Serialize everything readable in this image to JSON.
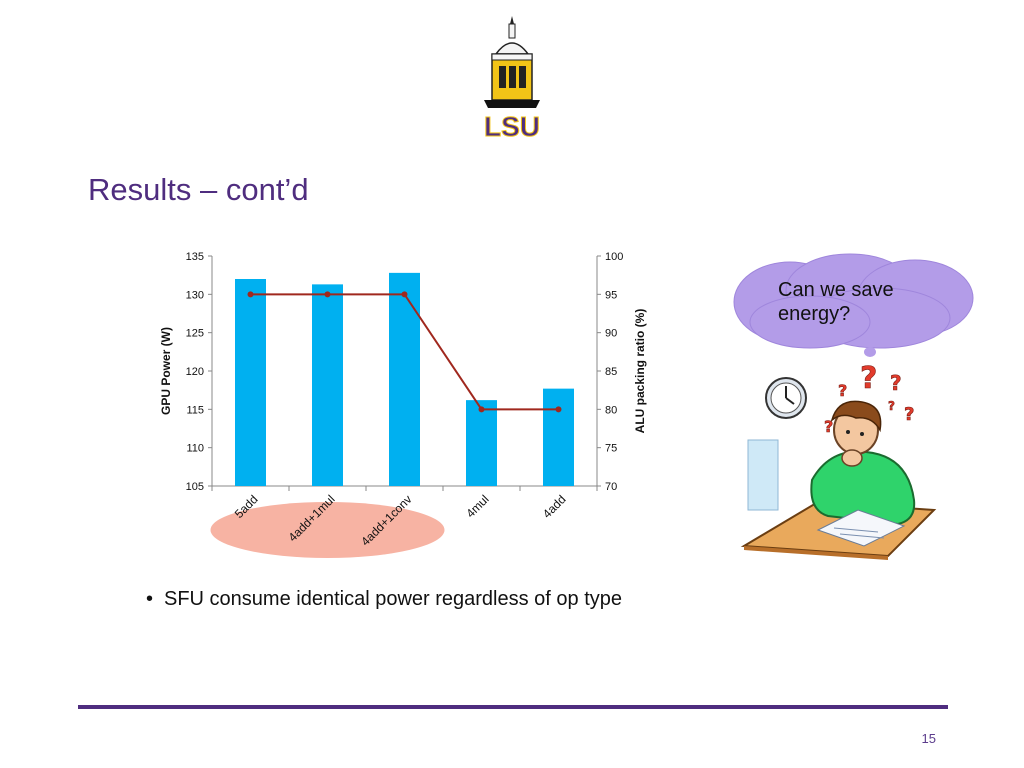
{
  "slide": {
    "title": "Results – cont’d",
    "logo_text": "LSU",
    "bubble_text": "Can we save energy?",
    "bullet": "SFU consume identical power regardless of op type",
    "page_number": "15"
  },
  "colors": {
    "title": "#4f2d7f",
    "bar": "#00b0f0",
    "line": "#a0281e",
    "highlight_ellipse": "#f7b3a3",
    "bubble": "#b39ce8",
    "rule": "#4f2d7f"
  },
  "chart_data": {
    "type": "bar",
    "categories": [
      "5add",
      "4add+1mul",
      "4add+1conv",
      "4mul",
      "4add"
    ],
    "series": [
      {
        "type": "bar",
        "axis": "left",
        "values": [
          132,
          131.3,
          132.8,
          116.2,
          117.7
        ]
      },
      {
        "type": "line",
        "axis": "right",
        "values": [
          95,
          95,
          95,
          80,
          80
        ]
      }
    ],
    "ylabel": "GPU Power (W)",
    "ylim": [
      105,
      135
    ],
    "yticks": [
      105,
      110,
      115,
      120,
      125,
      130,
      135
    ],
    "y2label": "ALU packing ratio (%)",
    "y2lim": [
      70,
      100
    ],
    "y2ticks": [
      70,
      75,
      80,
      85,
      90,
      95,
      100
    ],
    "grid": false,
    "legend": "none",
    "highlighted_categories": [
      "5add",
      "4add+1mul",
      "4add+1conv"
    ]
  }
}
